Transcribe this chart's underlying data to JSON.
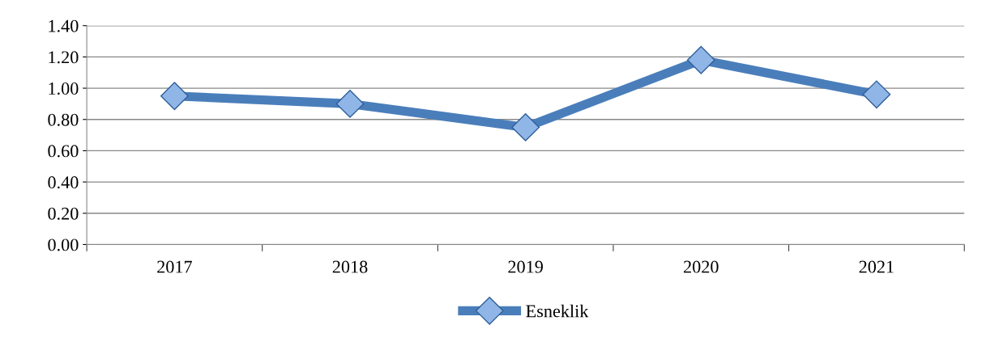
{
  "chart_data": {
    "type": "line",
    "categories": [
      "2017",
      "2018",
      "2019",
      "2020",
      "2021"
    ],
    "series": [
      {
        "name": "Esneklik",
        "color": "#4a7ebb",
        "values": [
          0.95,
          0.9,
          0.75,
          1.18,
          0.96
        ]
      }
    ],
    "ylim": [
      0,
      1.4
    ],
    "yticks": [
      {
        "value": 0,
        "label": "0.00"
      },
      {
        "value": 0.2,
        "label": "0.20"
      },
      {
        "value": 0.4,
        "label": "0.40"
      },
      {
        "value": 0.6,
        "label": "0.60"
      },
      {
        "value": 0.8,
        "label": "0.80"
      },
      {
        "value": 1.0,
        "label": "1.00"
      },
      {
        "value": 1.2,
        "label": "1.20"
      },
      {
        "value": 1.4,
        "label": "1.40"
      }
    ],
    "grid": "y",
    "legend": "bottom",
    "marker": "diamond",
    "line_style": "solid"
  }
}
